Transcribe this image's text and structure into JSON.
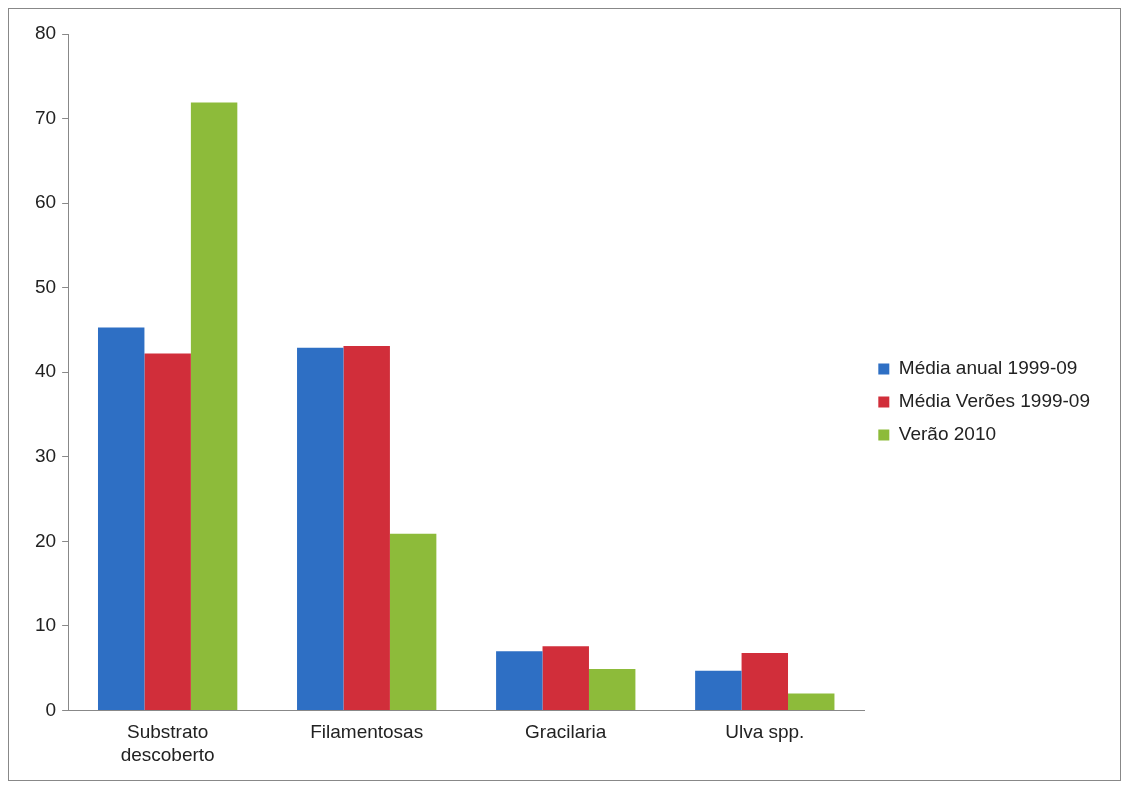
{
  "chart_data": {
    "type": "bar",
    "categories": [
      "Substrato descoberto",
      "Filamentosas",
      "Gracilaria",
      "Ulva spp."
    ],
    "series": [
      {
        "name": "Média anual 1999-09",
        "color": "#2e6fc4",
        "values": [
          45.3,
          42.9,
          7.0,
          4.7
        ]
      },
      {
        "name": "Média Verões 1999-09",
        "color": "#d12e3a",
        "values": [
          42.2,
          43.1,
          7.6,
          6.8
        ]
      },
      {
        "name": "Verão 2010",
        "color": "#8dbb3a",
        "values": [
          71.9,
          20.9,
          4.9,
          2.0
        ]
      }
    ],
    "ylim": [
      0,
      80
    ],
    "yticks": [
      0,
      10,
      20,
      30,
      40,
      50,
      60,
      70,
      80
    ],
    "grid": false,
    "legend": "right"
  }
}
